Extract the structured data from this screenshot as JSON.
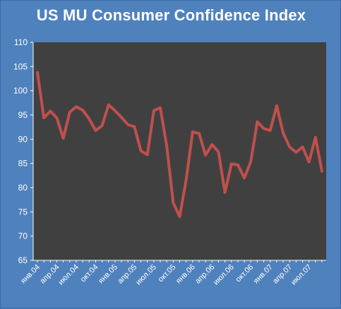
{
  "chart_data": {
    "type": "line",
    "title": "US MU Consumer Confidence Index",
    "xlabel": "",
    "ylabel": "",
    "ylim": [
      65,
      110
    ],
    "yticks": [
      65,
      70,
      75,
      80,
      85,
      90,
      95,
      100,
      105,
      110
    ],
    "x": [
      "янв.04",
      "фев.04",
      "мар.04",
      "апр.04",
      "май.04",
      "июн.04",
      "июл.04",
      "авг.04",
      "сен.04",
      "окт.04",
      "ноя.04",
      "дек.04",
      "янв.05",
      "фев.05",
      "мар.05",
      "апр.05",
      "май.05",
      "июн.05",
      "июл.05",
      "авг.05",
      "сен.05",
      "окт.05",
      "ноя.05",
      "дек.05",
      "янв.06",
      "фев.06",
      "мар.06",
      "апр.06",
      "май.06",
      "июн.06",
      "июл.06",
      "авг.06",
      "сен.06",
      "окт.06",
      "ноя.06",
      "дек.06",
      "янв.07",
      "фев.07",
      "мар.07",
      "апр.07",
      "май.07",
      "июн.07",
      "июл.07",
      "авг.07",
      "сен.07"
    ],
    "xtick_labels": [
      {
        "index": 0,
        "label": "янв.04"
      },
      {
        "index": 3,
        "label": "апр.04"
      },
      {
        "index": 6,
        "label": "июл.04"
      },
      {
        "index": 9,
        "label": "окт.04"
      },
      {
        "index": 12,
        "label": "янв.05"
      },
      {
        "index": 15,
        "label": "апр.05"
      },
      {
        "index": 18,
        "label": "июл.05"
      },
      {
        "index": 21,
        "label": "окт.05"
      },
      {
        "index": 24,
        "label": "янв.06"
      },
      {
        "index": 27,
        "label": "апр.06"
      },
      {
        "index": 30,
        "label": "июл.06"
      },
      {
        "index": 33,
        "label": "окт.06"
      },
      {
        "index": 36,
        "label": "янв.07"
      },
      {
        "index": 39,
        "label": "апр.07"
      },
      {
        "index": 42,
        "label": "июл.07"
      }
    ],
    "series": [
      {
        "values": [
          103.8,
          94.4,
          95.8,
          94.4,
          90.2,
          95.6,
          96.7,
          96.0,
          94.2,
          91.8,
          92.8,
          97.1,
          95.9,
          94.5,
          93.0,
          92.6,
          87.6,
          86.8,
          95.9,
          96.5,
          88.6,
          76.9,
          74.0,
          81.6,
          91.5,
          91.2,
          86.7,
          88.9,
          87.4,
          79.0,
          84.9,
          84.7,
          82.0,
          85.4,
          93.6,
          92.2,
          91.8,
          96.9,
          91.3,
          88.4,
          87.3,
          88.4,
          85.3,
          90.4,
          83.4
        ]
      }
    ],
    "grid": false,
    "legend": "none"
  },
  "colors": {
    "background": "#4f81bd",
    "plot_area": "#404040",
    "line": "#c0504d",
    "text": "#ffffff"
  }
}
